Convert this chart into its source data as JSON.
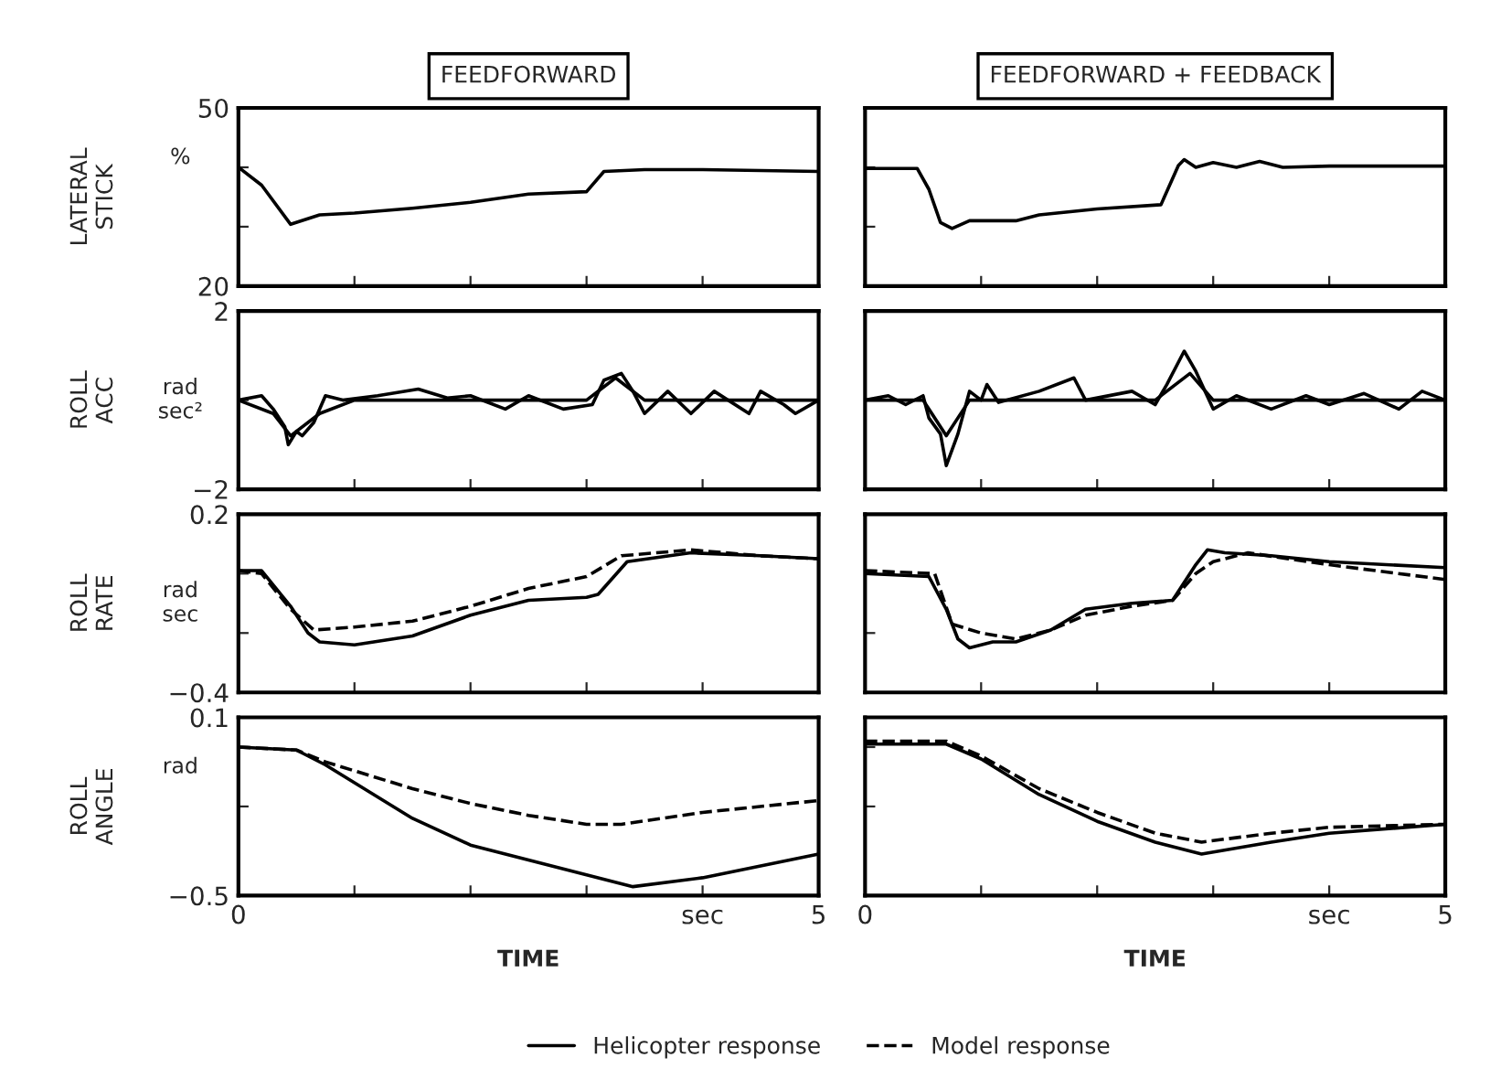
{
  "chart_data": [
    {
      "type": "line",
      "title": "FEEDFORWARD",
      "ylabel": "LATERAL\nSTICK",
      "annotations": [
        "%"
      ],
      "xlim": [
        0,
        5
      ],
      "ylim": [
        20,
        50
      ],
      "tick_labels": "y",
      "xticks": [
        {
          "value": 0,
          "label": null
        },
        {
          "value": 1,
          "label": null
        },
        {
          "value": 2,
          "label": null
        },
        {
          "value": 3,
          "label": null
        },
        {
          "value": 4,
          "label": null
        },
        {
          "value": 5,
          "label": null
        }
      ],
      "yticks": [
        20,
        {
          "value": 30,
          "label": null
        },
        {
          "value": 40,
          "label": null
        },
        50
      ],
      "series": [
        {
          "color": "#000000",
          "line_style": "solid",
          "x": [
            0,
            0.2,
            0.45,
            0.7,
            1,
            1.5,
            2,
            2.5,
            3,
            3.15,
            3.5,
            4,
            5
          ],
          "values": [
            40,
            37,
            30.4,
            32,
            32.3,
            33.1,
            34.1,
            35.5,
            35.9,
            39.3,
            39.6,
            39.6,
            39.3
          ]
        }
      ]
    },
    {
      "type": "line",
      "title": "FEEDFORWARD + FEEDBACK",
      "xlim": [
        0,
        5
      ],
      "ylim": [
        20,
        50
      ],
      "tick_labels": false,
      "xticks": [
        {
          "value": 0,
          "label": null
        },
        {
          "value": 1,
          "label": null
        },
        {
          "value": 2,
          "label": null
        },
        {
          "value": 3,
          "label": null
        },
        {
          "value": 4,
          "label": null
        },
        {
          "value": 5,
          "label": null
        }
      ],
      "yticks": [
        {
          "value": 20,
          "label": null
        },
        {
          "value": 30,
          "label": null
        },
        {
          "value": 40,
          "label": null
        },
        {
          "value": 50,
          "label": null
        }
      ],
      "series": [
        {
          "color": "#000000",
          "line_style": "solid",
          "x": [
            0,
            0.45,
            0.55,
            0.65,
            0.75,
            0.9,
            1.3,
            1.5,
            2,
            2.55,
            2.7,
            2.75,
            2.85,
            3,
            3.2,
            3.4,
            3.6,
            4,
            5
          ],
          "values": [
            39.8,
            39.8,
            36.3,
            30.7,
            29.7,
            31,
            31,
            32,
            33,
            33.7,
            40.3,
            41.3,
            40,
            40.8,
            40,
            41,
            40,
            40.2,
            40.2
          ]
        }
      ]
    },
    {
      "type": "line",
      "ylabel": "ROLL\nACC",
      "annotations": [
        "rad\nsec²"
      ],
      "xlim": [
        0,
        5
      ],
      "ylim": [
        -2,
        2
      ],
      "tick_labels": "y",
      "xticks": [
        {
          "value": 0,
          "label": null
        },
        {
          "value": 1,
          "label": null
        },
        {
          "value": 2,
          "label": null
        },
        {
          "value": 3,
          "label": null
        },
        {
          "value": 4,
          "label": null
        },
        {
          "value": 5,
          "label": null
        }
      ],
      "yticks": [
        {
          "value": -2,
          "label": "−2"
        },
        {
          "value": 0,
          "label": null
        },
        2
      ],
      "series": [
        {
          "color": "#000000",
          "line_style": "solid",
          "x": [
            0,
            0.2,
            0.3,
            0.4,
            0.43,
            0.5,
            0.55,
            0.65,
            0.75,
            0.9,
            1.2,
            1.55,
            1.8,
            2,
            2.3,
            2.5,
            2.8,
            3.05,
            3.15,
            3.3,
            3.4,
            3.5,
            3.7,
            3.9,
            4.1,
            4.4,
            4.5,
            4.7,
            4.8,
            5
          ],
          "values": [
            0,
            0.1,
            -0.2,
            -0.6,
            -1,
            -0.7,
            -0.8,
            -0.5,
            0.1,
            0,
            0.1,
            0.25,
            0.05,
            0.1,
            -0.2,
            0.1,
            -0.2,
            -0.1,
            0.45,
            0.6,
            0.2,
            -0.3,
            0.2,
            -0.3,
            0.2,
            -0.3,
            0.2,
            -0.1,
            -0.3,
            0
          ]
        },
        {
          "color": "#000000",
          "line_style": "solid",
          "x": [
            0,
            0.3,
            0.45,
            0.7,
            1,
            3,
            3.25,
            3.5,
            5
          ],
          "values": [
            0,
            -0.3,
            -0.8,
            -0.3,
            0,
            0,
            0.5,
            0,
            0
          ]
        }
      ]
    },
    {
      "type": "line",
      "xlim": [
        0,
        5
      ],
      "ylim": [
        -2,
        2
      ],
      "tick_labels": false,
      "xticks": [
        {
          "value": 0,
          "label": null
        },
        {
          "value": 1,
          "label": null
        },
        {
          "value": 2,
          "label": null
        },
        {
          "value": 3,
          "label": null
        },
        {
          "value": 4,
          "label": null
        },
        {
          "value": 5,
          "label": null
        }
      ],
      "yticks": [
        {
          "value": -2,
          "label": null
        },
        {
          "value": 0,
          "label": null
        },
        {
          "value": 2,
          "label": null
        }
      ],
      "series": [
        {
          "color": "#000000",
          "line_style": "solid",
          "x": [
            0,
            0.2,
            0.35,
            0.5,
            0.55,
            0.65,
            0.7,
            0.8,
            0.9,
            1,
            1.05,
            1.15,
            1.5,
            1.8,
            1.9,
            2.3,
            2.5,
            2.6,
            2.75,
            2.85,
            3,
            3.2,
            3.5,
            3.8,
            4,
            4.3,
            4.6,
            4.8,
            5
          ],
          "values": [
            0,
            0.1,
            -0.1,
            0.1,
            -0.4,
            -0.76,
            -1.47,
            -0.76,
            0.2,
            0,
            0.35,
            -0.05,
            0.2,
            0.5,
            0,
            0.2,
            -0.1,
            0.35,
            1.1,
            0.65,
            -0.2,
            0.1,
            -0.2,
            0.1,
            -0.1,
            0.15,
            -0.2,
            0.2,
            0
          ]
        },
        {
          "color": "#000000",
          "line_style": "solid",
          "x": [
            0,
            0.5,
            0.7,
            0.9,
            2.5,
            2.8,
            3,
            5
          ],
          "values": [
            0,
            0,
            -0.8,
            0,
            0,
            0.6,
            0,
            0
          ]
        }
      ]
    },
    {
      "type": "line",
      "ylabel": "ROLL\nRATE",
      "annotations": [
        "rad\nsec"
      ],
      "xlim": [
        0,
        5
      ],
      "ylim": [
        -0.4,
        0.2
      ],
      "tick_labels": "y",
      "xticks": [
        {
          "value": 0,
          "label": null
        },
        {
          "value": 1,
          "label": null
        },
        {
          "value": 2,
          "label": null
        },
        {
          "value": 3,
          "label": null
        },
        {
          "value": 4,
          "label": null
        },
        {
          "value": 5,
          "label": null
        }
      ],
      "yticks": [
        {
          "value": -0.4,
          "label": "−0.4"
        },
        {
          "value": -0.2,
          "label": null
        },
        {
          "value": 0,
          "label": null
        },
        0.2
      ],
      "series": [
        {
          "color": "#000000",
          "line_style": "solid",
          "x": [
            0,
            0.2,
            0.45,
            0.6,
            0.7,
            1,
            1.5,
            2,
            2.5,
            3,
            3.1,
            3.35,
            3.9,
            4.5,
            5
          ],
          "values": [
            0.01,
            0.01,
            -0.11,
            -0.2,
            -0.23,
            -0.24,
            -0.21,
            -0.14,
            -0.09,
            -0.08,
            -0.07,
            0.04,
            0.07,
            0.06,
            0.05
          ]
        },
        {
          "color": "#000000",
          "line_style": "dashed",
          "x": [
            0,
            0.2,
            0.45,
            0.65,
            1,
            1.5,
            2,
            2.5,
            3,
            3.3,
            3.9,
            4.5,
            5
          ],
          "values": [
            0.01,
            0,
            -0.12,
            -0.19,
            -0.18,
            -0.16,
            -0.11,
            -0.05,
            -0.01,
            0.06,
            0.08,
            0.06,
            0.05
          ]
        }
      ]
    },
    {
      "type": "line",
      "xlim": [
        0,
        5
      ],
      "ylim": [
        -0.4,
        0.2
      ],
      "tick_labels": false,
      "xticks": [
        {
          "value": 0,
          "label": null
        },
        {
          "value": 1,
          "label": null
        },
        {
          "value": 2,
          "label": null
        },
        {
          "value": 3,
          "label": null
        },
        {
          "value": 4,
          "label": null
        },
        {
          "value": 5,
          "label": null
        }
      ],
      "yticks": [
        {
          "value": -0.4,
          "label": null
        },
        {
          "value": -0.2,
          "label": null
        },
        {
          "value": 0,
          "label": null
        },
        {
          "value": 0.2,
          "label": null
        }
      ],
      "series": [
        {
          "color": "#000000",
          "line_style": "solid",
          "x": [
            0,
            0.55,
            0.7,
            0.8,
            0.9,
            1.1,
            1.3,
            1.6,
            1.9,
            2.3,
            2.65,
            2.85,
            2.95,
            3.1,
            3.5,
            4,
            5
          ],
          "values": [
            0,
            -0.01,
            -0.12,
            -0.22,
            -0.25,
            -0.23,
            -0.23,
            -0.19,
            -0.12,
            -0.1,
            -0.09,
            0.03,
            0.08,
            0.07,
            0.06,
            0.04,
            0.02
          ]
        },
        {
          "color": "#000000",
          "line_style": "dashed",
          "x": [
            0,
            0.6,
            0.75,
            1,
            1.3,
            1.6,
            1.9,
            2.3,
            2.65,
            2.85,
            3,
            3.3,
            4,
            5
          ],
          "values": [
            0.01,
            0,
            -0.17,
            -0.2,
            -0.22,
            -0.19,
            -0.14,
            -0.11,
            -0.09,
            0,
            0.04,
            0.07,
            0.03,
            -0.02
          ]
        }
      ]
    },
    {
      "type": "line",
      "ylabel": "ROLL\nANGLE",
      "xlabel": "TIME",
      "annotations": [
        "rad"
      ],
      "xlim": [
        0,
        5
      ],
      "ylim": [
        -0.5,
        0.1
      ],
      "xticks": [
        0,
        {
          "value": 1,
          "label": null
        },
        {
          "value": 2,
          "label": null
        },
        {
          "value": 3,
          "label": null
        },
        {
          "value": 4,
          "label": "sec"
        },
        5
      ],
      "yticks": [
        {
          "value": -0.5,
          "label": "−0.5"
        },
        {
          "value": -0.2,
          "label": null
        },
        {
          "value": 0,
          "label": null
        },
        0.1
      ],
      "series": [
        {
          "color": "#000000",
          "line_style": "solid",
          "x": [
            0,
            0.5,
            0.75,
            1.5,
            2,
            2.5,
            3,
            3.4,
            4,
            5
          ],
          "values": [
            0,
            -0.01,
            -0.06,
            -0.24,
            -0.33,
            -0.38,
            -0.43,
            -0.47,
            -0.44,
            -0.36
          ]
        },
        {
          "color": "#000000",
          "line_style": "dashed",
          "x": [
            0,
            0.5,
            0.75,
            1.5,
            2,
            2.5,
            3,
            3.3,
            4,
            5
          ],
          "values": [
            0,
            -0.01,
            -0.05,
            -0.14,
            -0.19,
            -0.23,
            -0.26,
            -0.26,
            -0.22,
            -0.18
          ]
        }
      ]
    },
    {
      "type": "line",
      "xlabel": "TIME",
      "xlim": [
        0,
        5
      ],
      "ylim": [
        -0.5,
        0.1
      ],
      "tick_labels": "x",
      "legend": "bottom",
      "xticks": [
        0,
        {
          "value": 1,
          "label": null
        },
        {
          "value": 2,
          "label": null
        },
        {
          "value": 3,
          "label": null
        },
        {
          "value": 4,
          "label": "sec"
        },
        5
      ],
      "yticks": [
        {
          "value": -0.5,
          "label": null
        },
        {
          "value": -0.2,
          "label": null
        },
        {
          "value": 0,
          "label": null
        },
        {
          "value": 0.1,
          "label": null
        }
      ],
      "series": [
        {
          "name": "Helicopter response",
          "color": "#000000",
          "line_style": "solid",
          "x": [
            0,
            0.7,
            1,
            1.5,
            2,
            2.5,
            2.9,
            3.5,
            4,
            5
          ],
          "values": [
            0.01,
            0.01,
            -0.04,
            -0.16,
            -0.25,
            -0.32,
            -0.36,
            -0.32,
            -0.29,
            -0.26
          ]
        },
        {
          "name": "Model response",
          "color": "#000000",
          "line_style": "dashed",
          "x": [
            0,
            0.7,
            1,
            1.5,
            2,
            2.5,
            2.9,
            3.5,
            4,
            5
          ],
          "values": [
            0.02,
            0.02,
            -0.03,
            -0.14,
            -0.22,
            -0.29,
            -0.32,
            -0.29,
            -0.27,
            -0.26
          ]
        }
      ]
    }
  ]
}
